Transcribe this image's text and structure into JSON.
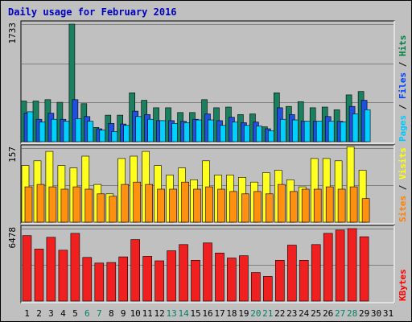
{
  "chart_data": {
    "type": "bar",
    "title": "Daily usage for February 2016",
    "categories": [
      "1",
      "2",
      "3",
      "4",
      "5",
      "6",
      "7",
      "8",
      "9",
      "10",
      "11",
      "12",
      "13",
      "14",
      "15",
      "16",
      "17",
      "18",
      "19",
      "20",
      "21",
      "22",
      "23",
      "24",
      "25",
      "26",
      "27",
      "28",
      "29",
      "30",
      "31"
    ],
    "weekend_days": [
      "6",
      "7",
      "13",
      "14",
      "20",
      "21",
      "27",
      "28"
    ],
    "panels": [
      {
        "id": "pages-files-hits",
        "axis_max_label": "1733",
        "ymax": 1733,
        "legend": [
          {
            "text": "Pages",
            "color": "#00c8ff"
          },
          {
            "text": " / ",
            "color": "#000000"
          },
          {
            "text": "Files",
            "color": "#0040ff"
          },
          {
            "text": " / ",
            "color": "#000000"
          },
          {
            "text": "Hits",
            "color": "#008040"
          }
        ],
        "series": [
          {
            "name": "Hits",
            "color": "#1a8060",
            "values": [
              600,
              600,
              620,
              580,
              1733,
              560,
              210,
              390,
              390,
              720,
              610,
              500,
              500,
              430,
              430,
              620,
              500,
              510,
              400,
              410,
              220,
              720,
              520,
              590,
              500,
              510,
              470,
              690,
              740,
              0,
              0
            ]
          },
          {
            "name": "Files",
            "color": "#2050e0",
            "values": [
              420,
              330,
              420,
              330,
              620,
              370,
              190,
              270,
              260,
              450,
              400,
              310,
              310,
              300,
              330,
              410,
              310,
              360,
              280,
              290,
              190,
              500,
              400,
              300,
              300,
              370,
              300,
              520,
              610,
              0,
              0
            ]
          },
          {
            "name": "Pages",
            "color": "#00d0ff",
            "values": [
              440,
              290,
              330,
              300,
              340,
              300,
              170,
              150,
              240,
              370,
              330,
              310,
              270,
              280,
              320,
              320,
              240,
              290,
              240,
              230,
              160,
              330,
              320,
              300,
              300,
              300,
              290,
              410,
              470,
              0,
              0
            ]
          }
        ]
      },
      {
        "id": "sites-visits",
        "axis_max_label": "157",
        "ymax": 157,
        "legend": [
          {
            "text": "Sites",
            "color": "#ff8000"
          },
          {
            "text": " / ",
            "color": "#000000"
          },
          {
            "text": "Visits",
            "color": "#ffff00"
          }
        ],
        "series": [
          {
            "name": "Visits",
            "color": "#ffff20",
            "values": [
              120,
              130,
              150,
              120,
              115,
              140,
              80,
              60,
              135,
              140,
              150,
              120,
              100,
              115,
              90,
              130,
              100,
              100,
              95,
              85,
              105,
              110,
              90,
              75,
              135,
              135,
              130,
              160,
              110,
              0,
              0
            ]
          },
          {
            "name": "Sites",
            "color": "#ff9010",
            "values": [
              75,
              80,
              75,
              70,
              75,
              70,
              60,
              55,
              80,
              85,
              80,
              70,
              70,
              85,
              70,
              75,
              70,
              65,
              60,
              65,
              60,
              80,
              65,
              70,
              70,
              75,
              70,
              75,
              50,
              0,
              0
            ]
          }
        ]
      },
      {
        "id": "kbytes",
        "axis_max_label": "6478",
        "ymax": 6478,
        "legend": [
          {
            "text": "KBytes",
            "color": "#ff0000"
          }
        ],
        "series": [
          {
            "name": "KBytes",
            "color": "#f02020",
            "values": [
              5850,
              4650,
              5700,
              4550,
              6050,
              3900,
              3400,
              3450,
              3950,
              5500,
              4000,
              3600,
              4500,
              5050,
              3650,
              5200,
              4300,
              3850,
              4050,
              2550,
              2200,
              3650,
              5000,
              3650,
              5050,
              6050,
              6350,
              6478,
              5750,
              0,
              0
            ]
          }
        ]
      }
    ]
  }
}
